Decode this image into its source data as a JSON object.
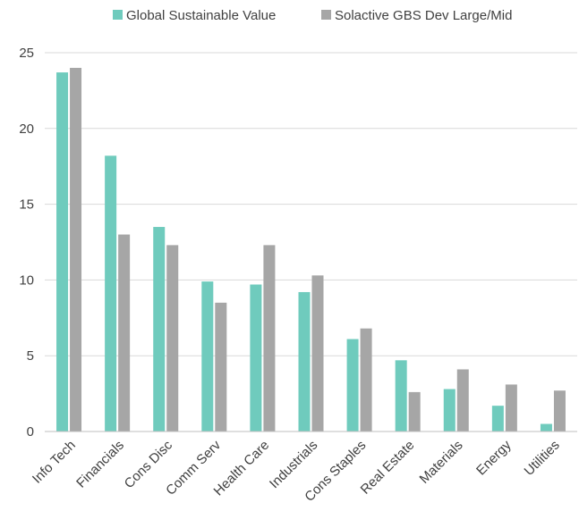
{
  "chart_data": {
    "type": "bar",
    "title": "",
    "xlabel": "",
    "ylabel": "",
    "ylim": [
      0,
      25
    ],
    "yticks": [
      0,
      5,
      10,
      15,
      20,
      25
    ],
    "grid": true,
    "legend_position": "top",
    "categories": [
      "Info Tech",
      "Financials",
      "Cons Disc",
      "Comm Serv",
      "Health Care",
      "Industrials",
      "Cons Staples",
      "Real Estate",
      "Materials",
      "Energy",
      "Utilities"
    ],
    "series": [
      {
        "name": "Global Sustainable Value",
        "color": "#6fcbbd",
        "values": [
          23.7,
          18.2,
          13.5,
          9.9,
          9.7,
          9.2,
          6.1,
          4.7,
          2.8,
          1.7,
          0.5
        ]
      },
      {
        "name": "Solactive GBS Dev Large/Mid",
        "color": "#a6a6a6",
        "values": [
          24.0,
          13.0,
          12.3,
          8.5,
          12.3,
          10.3,
          6.8,
          2.6,
          4.1,
          3.1,
          2.7
        ]
      }
    ]
  }
}
